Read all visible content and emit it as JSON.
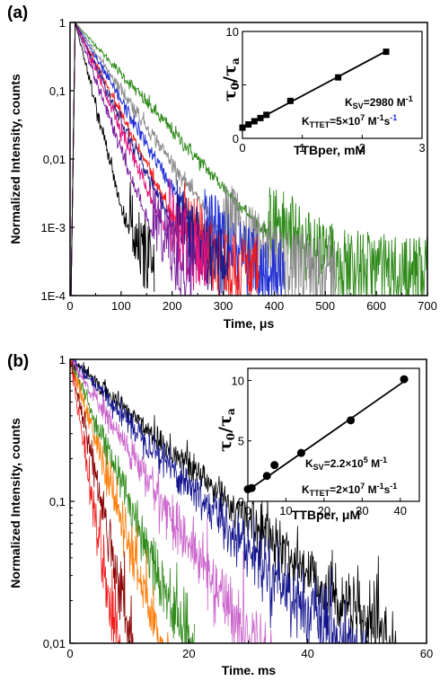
{
  "colors": {
    "black": "#000000",
    "purple": "#7a1f9e",
    "magenta": "#e0137f",
    "navy": "#1c1c8a",
    "red": "#f21c1c",
    "blue": "#1f2fd6",
    "gray": "#8a8a8a",
    "green": "#2f8a1a",
    "darkred": "#8b0000",
    "orange": "#ff7f0e",
    "violet": "#cc66cc",
    "darkblue": "#14148f"
  },
  "panel_a": {
    "label": "(a)",
    "xlabel": "Time, μs",
    "ylabel": "Normalized Intensity, counts",
    "inset": {
      "xlabel": "TTBper, mM",
      "ylabel_main": "τ",
      "ylabel_sub0": "0",
      "ylabel_slash": "/τ",
      "ylabel_suba": "a",
      "ksv_main": "K",
      "ksv_sub": "SV",
      "ksv_value": "=2980 M",
      "ksv_exp": "-1",
      "kttet_main": "K",
      "kttet_sub": "TTET",
      "kttet_value": "=5×10",
      "kttet_exp1": "7",
      "kttet_unit1": " M",
      "kttet_exp2": "-1",
      "kttet_unit2": "s",
      "kttet_exp3": "-1"
    }
  },
  "panel_b": {
    "label": "(b)",
    "xlabel": "Time. ms",
    "ylabel": "Normalized Intensity, counts",
    "inset": {
      "xlabel": "TTBper, μM",
      "ylabel_main": "τ",
      "ylabel_sub0": "0",
      "ylabel_slash": "/τ",
      "ylabel_suba": "a",
      "ksv_main": "K",
      "ksv_sub": "SV",
      "ksv_value": "=2.2×10",
      "ksv_exp1": "5",
      "ksv_unit": " M",
      "ksv_exp2": "-1",
      "kttet_main": "K",
      "kttet_sub": "TTET",
      "kttet_value": "=2×10",
      "kttet_exp1": "7",
      "kttet_unit1": " M",
      "kttet_exp2": "-1",
      "kttet_unit2": "s",
      "kttet_exp3": "-1"
    }
  },
  "chart_data": [
    {
      "type": "line",
      "panel": "(a)",
      "xlabel": "Time, μs",
      "ylabel": "Normalized Intensity, counts",
      "xlim": [
        0,
        700
      ],
      "ylim": [
        0.0001,
        1
      ],
      "yscale": "log",
      "xticks": [
        0,
        100,
        200,
        300,
        400,
        500,
        600,
        700
      ],
      "xtick_labels": [
        "0",
        "100",
        "200",
        "300",
        "400",
        "500",
        "600",
        "700"
      ],
      "yticks": [
        0.0001,
        0.001,
        0.01,
        0.1,
        1
      ],
      "ytick_labels": [
        "1E-4",
        "1E-3",
        "0,01",
        "0,1",
        "1"
      ],
      "peak_time": 10,
      "noise_floor": 0.0002,
      "series": [
        {
          "color": "black",
          "lifetime_us": 14.5,
          "end_us": 165
        },
        {
          "color": "purple",
          "lifetime_us": 21,
          "end_us": 240
        },
        {
          "color": "magenta",
          "lifetime_us": 25,
          "end_us": 270
        },
        {
          "color": "navy",
          "lifetime_us": 27.5,
          "end_us": 310
        },
        {
          "color": "red",
          "lifetime_us": 29,
          "end_us": 370
        },
        {
          "color": "blue",
          "lifetime_us": 34,
          "end_us": 420
        },
        {
          "color": "gray",
          "lifetime_us": 40,
          "end_us": 520
        },
        {
          "color": "green",
          "lifetime_us": 52,
          "end_us": 700
        }
      ]
    },
    {
      "type": "scatter",
      "panel": "(a) inset",
      "xlabel": "TTBper, mM",
      "ylabel": "τ0/τa",
      "xlim": [
        0,
        3
      ],
      "ylim": [
        0,
        10
      ],
      "xticks": [
        0,
        1,
        2,
        3
      ],
      "yticks": [
        0,
        5,
        10
      ],
      "x": [
        0,
        0.1,
        0.2,
        0.3,
        0.4,
        0.8,
        1.6,
        2.4
      ],
      "y": [
        1.0,
        1.3,
        1.6,
        1.9,
        2.2,
        3.5,
        5.7,
        8.1
      ],
      "fit": {
        "intercept": 1.0,
        "slope": 2.98
      }
    },
    {
      "type": "line",
      "panel": "(b)",
      "xlabel": "Time. ms",
      "ylabel": "Normalized Intensity, counts",
      "xlim": [
        0,
        60
      ],
      "ylim": [
        0.01,
        1
      ],
      "yscale": "log",
      "xticks": [
        0,
        20,
        40,
        60
      ],
      "xtick_labels": [
        "0",
        "20",
        "40",
        "60"
      ],
      "yticks": [
        0.01,
        0.1,
        1
      ],
      "ytick_labels": [
        "0,01",
        "0,1",
        "1"
      ],
      "series": [
        {
          "color": "red",
          "lifetime_ms": 1.7,
          "end_ms": 9
        },
        {
          "color": "darkred",
          "lifetime_ms": 2.3,
          "end_ms": 12
        },
        {
          "color": "orange",
          "lifetime_ms": 3.3,
          "end_ms": 17
        },
        {
          "color": "green",
          "lifetime_ms": 4.3,
          "end_ms": 21
        },
        {
          "color": "violet",
          "lifetime_ms": 6.7,
          "end_ms": 36
        },
        {
          "color": "darkblue",
          "lifetime_ms": 9.8,
          "end_ms": 50
        },
        {
          "color": "black",
          "lifetime_ms": 11.6,
          "end_ms": 55
        }
      ]
    },
    {
      "type": "scatter",
      "panel": "(b) inset",
      "xlabel": "TTBper, μM",
      "ylabel": "τ0/τa",
      "xlim": [
        0,
        45
      ],
      "ylim": [
        0,
        11
      ],
      "xticks": [
        0,
        10,
        20,
        30,
        40
      ],
      "yticks": [
        0,
        5,
        10
      ],
      "x": [
        0,
        1,
        5,
        7,
        14,
        27,
        41
      ],
      "y": [
        1.0,
        1.1,
        2.1,
        3.0,
        4.0,
        6.7,
        10.1
      ],
      "fit": {
        "intercept": 0.9,
        "slope": 0.22
      }
    }
  ]
}
